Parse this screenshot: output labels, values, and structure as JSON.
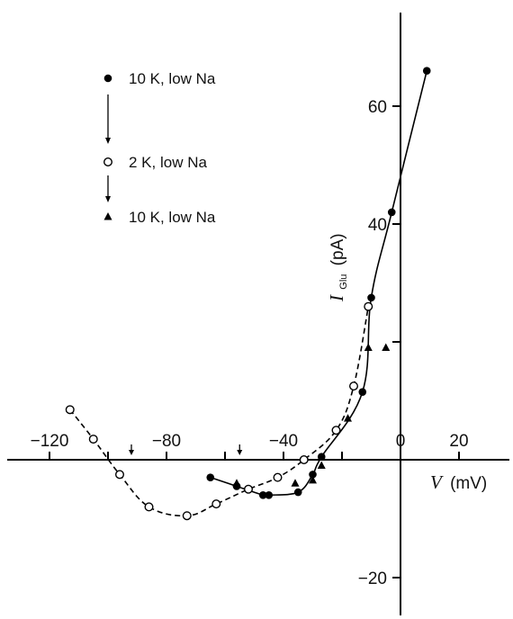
{
  "chart_data": {
    "type": "line",
    "xlabel": {
      "var": "V",
      "unit": "(mV)"
    },
    "ylabel": {
      "var": "I",
      "sub": "Glu",
      "unit": "(pA)"
    },
    "xlim": [
      -125,
      28
    ],
    "ylim": [
      -27,
      75
    ],
    "x_ticks": [
      -120,
      -100,
      -80,
      -60,
      -40,
      -20,
      0,
      20
    ],
    "x_tick_labels": [
      "-120",
      "-80",
      "-40",
      "0",
      "20"
    ],
    "x_label_values": [
      -120,
      -80,
      -40,
      0,
      20
    ],
    "y_ticks": [
      -20,
      0,
      20,
      40,
      60
    ],
    "y_tick_labels": [
      "-20",
      "40",
      "60"
    ],
    "y_label_values": [
      -20,
      40,
      60
    ],
    "arrows_x": [
      -92,
      -55
    ],
    "legend": [
      {
        "marker": "filled-circle",
        "label": "10 K, low Na"
      },
      {
        "marker": "open-circle",
        "label": "2 K, low Na"
      },
      {
        "marker": "filled-triangle",
        "label": "10 K, low Na"
      }
    ],
    "series": [
      {
        "marker": "filled-circle",
        "line": "solid",
        "points": [
          [
            -65,
            -3.0
          ],
          [
            -56,
            -4.5
          ],
          [
            -47,
            -6.0
          ],
          [
            -45,
            -6.0
          ],
          [
            -35,
            -5.5
          ],
          [
            -30,
            -2.5
          ],
          [
            -27,
            0.5
          ],
          [
            -13,
            11.5
          ],
          [
            -10,
            27.5
          ],
          [
            -3,
            42.0
          ],
          [
            9,
            66.0
          ]
        ]
      },
      {
        "marker": "open-circle",
        "line": "dashed",
        "points": [
          [
            -113,
            8.5
          ],
          [
            -105,
            3.5
          ],
          [
            -96,
            -2.5
          ],
          [
            -86,
            -8.0
          ],
          [
            -73,
            -9.5
          ],
          [
            -63,
            -7.5
          ],
          [
            -52,
            -5.0
          ],
          [
            -42,
            -3.0
          ],
          [
            -33,
            0.0
          ],
          [
            -22,
            5.0
          ],
          [
            -16,
            12.5
          ],
          [
            -11,
            26.0
          ]
        ]
      },
      {
        "marker": "filled-triangle",
        "line": "none",
        "points": [
          [
            -56,
            -4.0
          ],
          [
            -36,
            -4.0
          ],
          [
            -30,
            -3.5
          ],
          [
            -27,
            -1.0
          ],
          [
            -18,
            7.0
          ],
          [
            -11,
            19.0
          ],
          [
            -5,
            19.0
          ]
        ]
      }
    ]
  }
}
